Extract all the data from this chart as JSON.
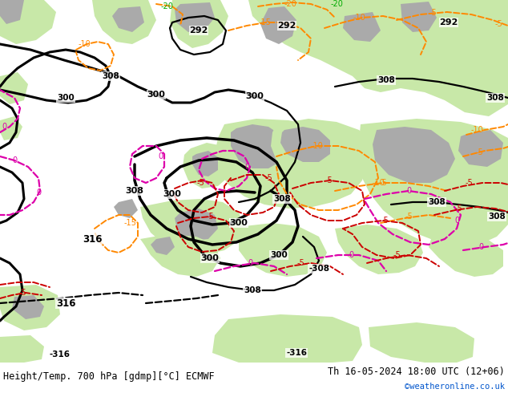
{
  "title_left": "Height/Temp. 700 hPa [gdmp][°C] ECMWF",
  "title_right": "Th 16-05-2024 18:00 UTC (12+06)",
  "credit": "©weatheronline.co.uk",
  "fig_width": 6.34,
  "fig_height": 4.9,
  "title_fontsize": 8.5,
  "credit_fontsize": 7.5,
  "credit_color": "#0055cc",
  "sea_color": "#d8d8d8",
  "land_green": "#c8e8a8",
  "land_gray": "#aaaaaa",
  "c_black": "#000000",
  "c_orange": "#ff8800",
  "c_red": "#cc0000",
  "c_magenta": "#dd00aa",
  "c_green": "#00aa00"
}
